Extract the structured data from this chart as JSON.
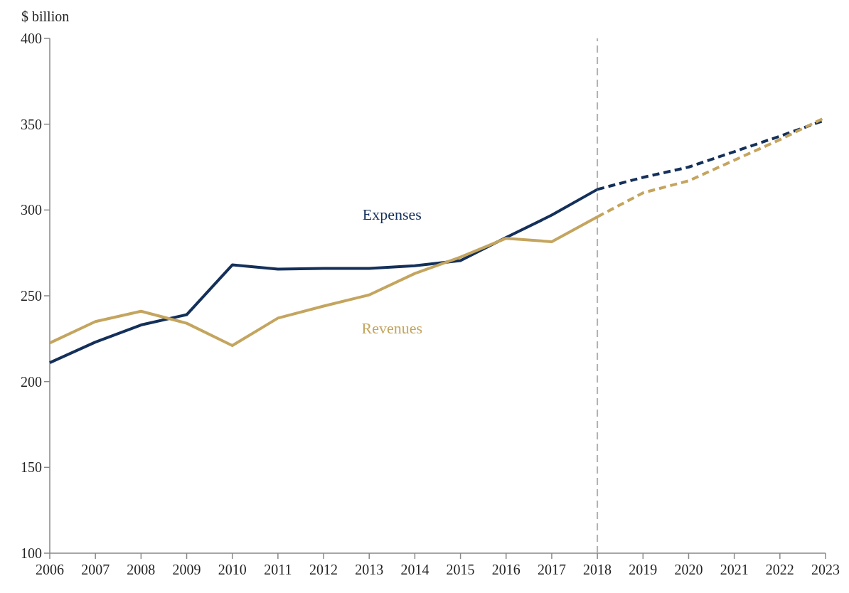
{
  "chart_data": {
    "type": "line",
    "ylabel": "$ billion",
    "x": [
      2006,
      2007,
      2008,
      2009,
      2010,
      2011,
      2012,
      2013,
      2014,
      2015,
      2016,
      2017,
      2018,
      2019,
      2020,
      2021,
      2022,
      2023
    ],
    "xlim": [
      2006,
      2023
    ],
    "xticks": [
      2006,
      2007,
      2008,
      2009,
      2010,
      2011,
      2012,
      2013,
      2014,
      2015,
      2016,
      2017,
      2018,
      2019,
      2020,
      2021,
      2022,
      2023
    ],
    "ylim": [
      100,
      400
    ],
    "yticks": [
      100,
      150,
      200,
      250,
      300,
      350,
      400
    ],
    "grid": false,
    "marker": "none",
    "series": [
      {
        "name": "Expenses",
        "color": "#14305a",
        "line_style": "solid",
        "values": [
          211,
          223,
          233,
          239,
          268,
          265.5,
          266,
          266,
          267.5,
          270.5,
          284,
          297,
          312,
          null,
          null,
          null,
          null,
          null
        ]
      },
      {
        "name": "Revenues",
        "color": "#c4a55f",
        "line_style": "solid",
        "values": [
          222.5,
          235,
          241,
          234,
          221,
          237,
          244,
          250.5,
          263,
          272.5,
          283.5,
          281.5,
          296,
          null,
          null,
          null,
          null,
          null
        ]
      },
      {
        "color": "#14305a",
        "line_style": "dashed",
        "values": [
          null,
          null,
          null,
          null,
          null,
          null,
          null,
          null,
          null,
          null,
          null,
          null,
          312,
          319,
          325,
          334,
          343,
          352.5
        ]
      },
      {
        "color": "#c4a55f",
        "line_style": "dashed",
        "values": [
          null,
          null,
          null,
          null,
          null,
          null,
          null,
          null,
          null,
          null,
          null,
          null,
          296,
          310,
          317,
          329,
          341,
          354
        ]
      }
    ],
    "ref_lines": [
      {
        "axis": "x",
        "value": 2018,
        "color": "#b0b0b0",
        "line_style": "dashed"
      }
    ]
  }
}
